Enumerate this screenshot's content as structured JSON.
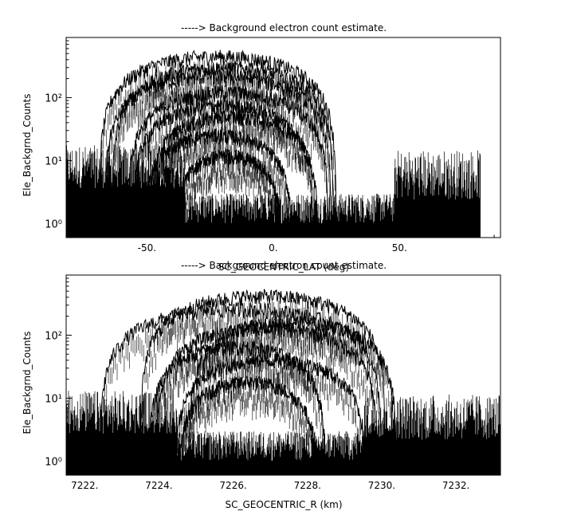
{
  "chart_data": [
    {
      "type": "line",
      "title": "-----> Background electron count estimate.",
      "xlabel": "SC_GEOCENTRIC_LAT (deg)",
      "ylabel": "Ele_Backgrnd_Counts",
      "xlim": [
        -82,
        90
      ],
      "ylim": [
        0.6,
        900
      ],
      "yscale": "log",
      "x_ticks": [
        -50,
        0,
        50
      ],
      "x_tick_labels": [
        "-50.",
        "0.",
        "50."
      ],
      "y_ticks": [
        1,
        10,
        100
      ],
      "y_tick_labels": [
        "10⁰",
        "10¹",
        "10²"
      ],
      "data_extent_x": [
        -82,
        82
      ],
      "background_level": 2,
      "noise_regions": [
        {
          "x": [
            -82,
            -35
          ],
          "level": 8,
          "spread": 2.2
        },
        {
          "x": [
            48,
            82
          ],
          "level": 6,
          "spread": 2.5
        }
      ],
      "arcs": [
        {
          "center": -22,
          "halfwidth": 47,
          "peak": 450
        },
        {
          "center": -20,
          "halfwidth": 44,
          "peak": 300
        },
        {
          "center": -22,
          "halfwidth": 45,
          "peak": 220
        },
        {
          "center": -18,
          "halfwidth": 40,
          "peak": 120
        },
        {
          "center": -20,
          "halfwidth": 36,
          "peak": 75
        },
        {
          "center": -16,
          "halfwidth": 34,
          "peak": 50
        },
        {
          "center": -22,
          "halfwidth": 30,
          "peak": 25
        },
        {
          "center": -18,
          "halfwidth": 22,
          "peak": 12
        }
      ]
    },
    {
      "type": "line",
      "title": "-----> Background electron count estimate.",
      "xlabel": "SC_GEOCENTRIC_R (km)",
      "ylabel": "Ele_Backgrnd_Counts",
      "xlim": [
        7221.5,
        7233.2
      ],
      "ylim": [
        0.6,
        900
      ],
      "yscale": "log",
      "x_ticks": [
        7222,
        7224,
        7226,
        7228,
        7230,
        7232
      ],
      "x_tick_labels": [
        "7222.",
        "7224.",
        "7226.",
        "7228.",
        "7230.",
        "7232."
      ],
      "y_ticks": [
        1,
        10,
        100
      ],
      "y_tick_labels": [
        "10⁰",
        "10¹",
        "10²"
      ],
      "data_extent_x": [
        7221.5,
        7233.2
      ],
      "background_level": 2,
      "noise_regions": [
        {
          "x": [
            7221.5,
            7224.5
          ],
          "level": 6,
          "spread": 2.2
        },
        {
          "x": [
            7229.5,
            7233.2
          ],
          "level": 5,
          "spread": 2.3
        }
      ],
      "arcs": [
        {
          "center": 7226.8,
          "halfwidth": 3.3,
          "peak": 420
        },
        {
          "center": 7226.2,
          "halfwidth": 3.8,
          "peak": 260
        },
        {
          "center": 7227.6,
          "halfwidth": 2.8,
          "peak": 160
        },
        {
          "center": 7226.9,
          "halfwidth": 3.0,
          "peak": 130
        },
        {
          "center": 7226.1,
          "halfwidth": 2.4,
          "peak": 65
        },
        {
          "center": 7227.0,
          "halfwidth": 2.6,
          "peak": 40
        },
        {
          "center": 7226.4,
          "halfwidth": 1.9,
          "peak": 18
        }
      ]
    }
  ]
}
